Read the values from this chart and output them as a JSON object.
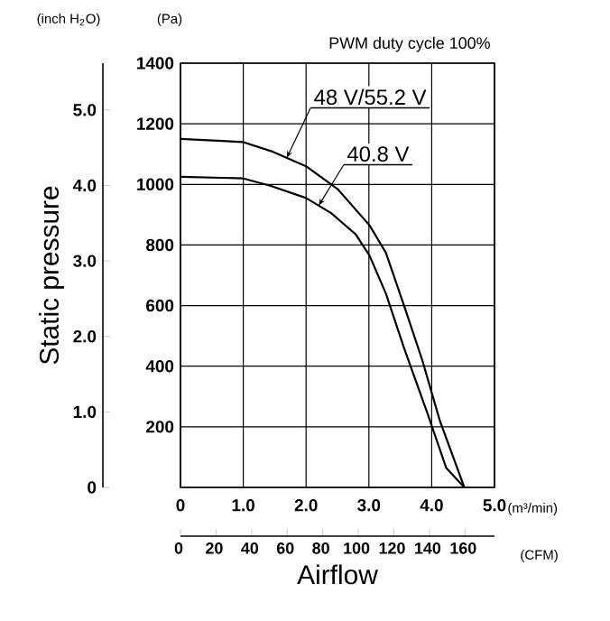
{
  "chart_data": {
    "type": "line",
    "title": "PWM duty cycle 100%",
    "xlabel": "Airflow",
    "y2label": "Static pressure",
    "annotations": [
      "(inch H$_{2}$O)",
      "(Pa)",
      "(m³/min)",
      "(CFM)"
    ],
    "series": [
      {
        "name": "48 V/55.2 V",
        "color": "#000000",
        "x": [
          0,
          0.99,
          1.44,
          2.0,
          2.5,
          3.01,
          3.27,
          3.56,
          3.85,
          4.13,
          4.52
        ],
        "values": [
          1150,
          1140,
          1110,
          1060,
          985,
          865,
          775,
          600,
          420,
          220,
          0
        ]
      },
      {
        "name": "40.8 V",
        "color": "#000000",
        "x": [
          0,
          0.99,
          1.44,
          2.0,
          2.4,
          2.79,
          3.01,
          3.27,
          3.56,
          3.94,
          4.23,
          4.52
        ],
        "values": [
          1025,
          1020,
          995,
          955,
          905,
          835,
          765,
          640,
          460,
          240,
          65,
          0
        ]
      }
    ],
    "xlim": [
      0,
      5
    ],
    "xticks": [
      0,
      {
        "value": 1,
        "label": "1.0"
      },
      {
        "value": 2,
        "label": "2.0"
      },
      {
        "value": 3,
        "label": "3.0"
      },
      {
        "value": 4,
        "label": "4.0"
      },
      {
        "value": 5,
        "label": "5.0"
      }
    ],
    "ylim": [
      0,
      1400
    ],
    "yticks": [
      {
        "value": 0,
        "label": null
      },
      200,
      400,
      600,
      800,
      1000,
      1200,
      1400
    ],
    "y2lim": [
      0,
      5.62
    ],
    "y2ticks": [
      0,
      {
        "value": 1,
        "label": "1.0"
      },
      {
        "value": 2,
        "label": "2.0"
      },
      {
        "value": 3,
        "label": "3.0"
      },
      {
        "value": 4,
        "label": "4.0"
      },
      {
        "value": 5,
        "label": "5.0"
      }
    ],
    "x2lim": [
      0,
      176.6
    ],
    "x2ticks": [
      0,
      20,
      40,
      60,
      80,
      100,
      120,
      140,
      160
    ],
    "grid": true,
    "line_style": "solid"
  }
}
